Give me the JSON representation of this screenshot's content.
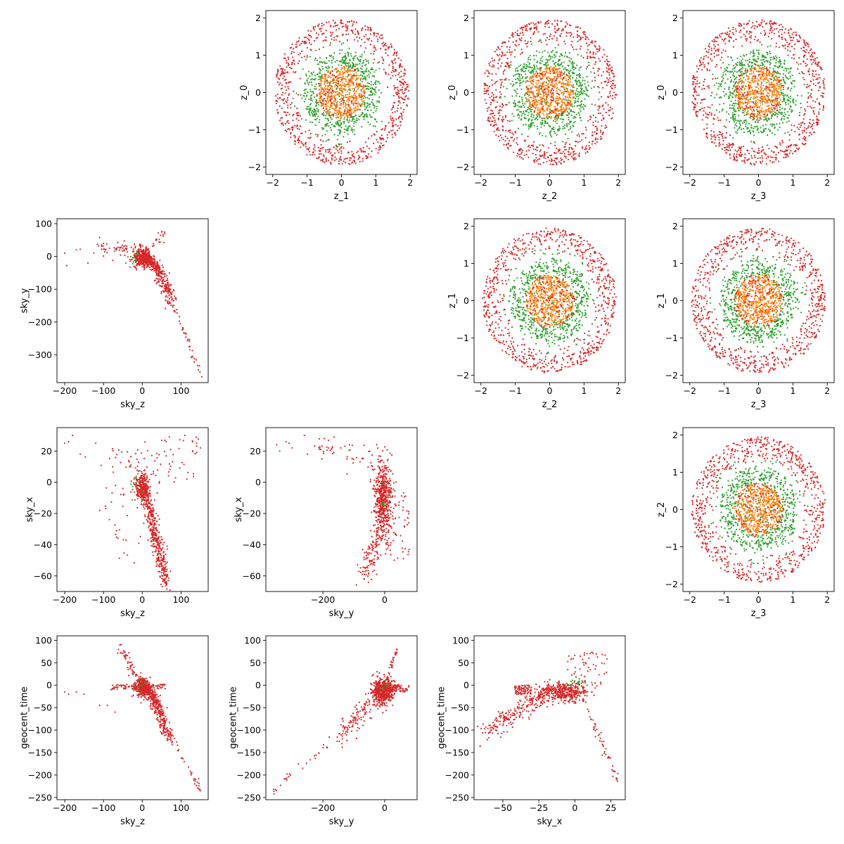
{
  "figure": {
    "layout": "4x4 corner plot",
    "marker_colors": {
      "red": "#d62728",
      "green": "#2ca02c",
      "orange": "#ff7f0e"
    }
  },
  "chart_data": [
    {
      "type": "scatter",
      "id": "p-0-1",
      "row": 0,
      "col": 1,
      "xlabel": "z_1",
      "ylabel": "z_0",
      "xlim": [
        -2.2,
        2.2
      ],
      "ylim": [
        -2.2,
        2.2
      ],
      "xticks": [
        -2,
        -1,
        0,
        1,
        2
      ],
      "yticks": [
        -2,
        -1,
        0,
        1,
        2
      ],
      "pattern": "rings"
    },
    {
      "type": "scatter",
      "id": "p-0-2",
      "row": 0,
      "col": 2,
      "xlabel": "z_2",
      "ylabel": "z_0",
      "xlim": [
        -2.2,
        2.2
      ],
      "ylim": [
        -2.2,
        2.2
      ],
      "xticks": [
        -2,
        -1,
        0,
        1,
        2
      ],
      "yticks": [
        -2,
        -1,
        0,
        1,
        2
      ],
      "pattern": "rings"
    },
    {
      "type": "scatter",
      "id": "p-0-3",
      "row": 0,
      "col": 3,
      "xlabel": "z_3",
      "ylabel": "z_0",
      "xlim": [
        -2.2,
        2.2
      ],
      "ylim": [
        -2.2,
        2.2
      ],
      "xticks": [
        -2,
        -1,
        0,
        1,
        2
      ],
      "yticks": [
        -2,
        -1,
        0,
        1,
        2
      ],
      "pattern": "rings"
    },
    {
      "type": "scatter",
      "id": "p-1-0",
      "row": 1,
      "col": 0,
      "xlabel": "sky_z",
      "ylabel": "sky_y",
      "xlim": [
        -220,
        170
      ],
      "ylim": [
        -385,
        115
      ],
      "xticks": [
        -200,
        -100,
        0,
        100
      ],
      "yticks": [
        100,
        0,
        -100,
        -200,
        -300
      ],
      "pattern": "skyzy"
    },
    {
      "type": "scatter",
      "id": "p-1-2",
      "row": 1,
      "col": 2,
      "xlabel": "z_2",
      "ylabel": "z_1",
      "xlim": [
        -2.2,
        2.2
      ],
      "ylim": [
        -2.2,
        2.2
      ],
      "xticks": [
        -2,
        -1,
        0,
        1,
        2
      ],
      "yticks": [
        -2,
        -1,
        0,
        1,
        2
      ],
      "pattern": "rings"
    },
    {
      "type": "scatter",
      "id": "p-1-3",
      "row": 1,
      "col": 3,
      "xlabel": "z_3",
      "ylabel": "z_1",
      "xlim": [
        -2.2,
        2.2
      ],
      "ylim": [
        -2.2,
        2.2
      ],
      "xticks": [
        -2,
        -1,
        0,
        1,
        2
      ],
      "yticks": [
        -2,
        -1,
        0,
        1,
        2
      ],
      "pattern": "rings"
    },
    {
      "type": "scatter",
      "id": "p-2-0",
      "row": 2,
      "col": 0,
      "xlabel": "sky_z",
      "ylabel": "sky_x",
      "xlim": [
        -220,
        170
      ],
      "ylim": [
        -70,
        35
      ],
      "xticks": [
        -200,
        -100,
        0,
        100
      ],
      "yticks": [
        20,
        0,
        -20,
        -40,
        -60
      ],
      "pattern": "skyzx"
    },
    {
      "type": "scatter",
      "id": "p-2-1",
      "row": 2,
      "col": 1,
      "xlabel": "sky_y",
      "ylabel": "sky_x",
      "xlim": [
        -385,
        105
      ],
      "ylim": [
        -70,
        35
      ],
      "xticks": [
        -200,
        0
      ],
      "yticks": [
        20,
        0,
        -20,
        -40,
        -60
      ],
      "pattern": "skyyx"
    },
    {
      "type": "scatter",
      "id": "p-2-3",
      "row": 2,
      "col": 3,
      "xlabel": "z_3",
      "ylabel": "z_2",
      "xlim": [
        -2.2,
        2.2
      ],
      "ylim": [
        -2.2,
        2.2
      ],
      "xticks": [
        -2,
        -1,
        0,
        1,
        2
      ],
      "yticks": [
        -2,
        -1,
        0,
        1,
        2
      ],
      "pattern": "rings"
    },
    {
      "type": "scatter",
      "id": "p-3-0",
      "row": 3,
      "col": 0,
      "xlabel": "sky_z",
      "ylabel": "geocent_time",
      "xlim": [
        -220,
        170
      ],
      "ylim": [
        -255,
        110
      ],
      "xticks": [
        -200,
        -100,
        0,
        100
      ],
      "yticks": [
        100,
        50,
        0,
        -50,
        -100,
        -150,
        -200,
        -250
      ],
      "pattern": "skyzt"
    },
    {
      "type": "scatter",
      "id": "p-3-1",
      "row": 3,
      "col": 1,
      "xlabel": "sky_y",
      "ylabel": "geocent_time",
      "xlim": [
        -385,
        105
      ],
      "ylim": [
        -255,
        110
      ],
      "xticks": [
        -200,
        0
      ],
      "yticks": [
        100,
        50,
        0,
        -50,
        -100,
        -150,
        -200,
        -250
      ],
      "pattern": "skyyt"
    },
    {
      "type": "scatter",
      "id": "p-3-2",
      "row": 3,
      "col": 2,
      "xlabel": "sky_x",
      "ylabel": "geocent_time",
      "xlim": [
        -70,
        35
      ],
      "ylim": [
        -255,
        110
      ],
      "xticks": [
        -50,
        -25,
        0,
        25
      ],
      "yticks": [
        100,
        50,
        0,
        -50,
        -100,
        -150,
        -200,
        -250
      ],
      "pattern": "skyxt"
    }
  ]
}
